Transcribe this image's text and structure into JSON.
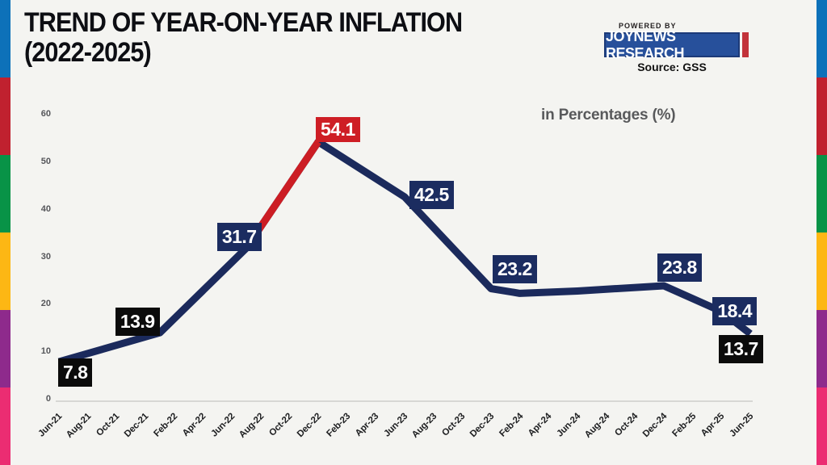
{
  "title": {
    "line1": "TREND OF YEAR-ON-YEAR INFLATION",
    "line2": "(2022-2025)"
  },
  "badge": {
    "powered_by": "POWERED BY",
    "brand": "JOYNEWS RESEARCH",
    "source": "Source: GSS",
    "brand_bg": "#27509b",
    "accent_red": "#c2333a"
  },
  "decorative_strips": {
    "colors": [
      "#0d71b9",
      "#c0212f",
      "#089347",
      "#fdb714",
      "#8e2a8c",
      "#eb2d72"
    ]
  },
  "chart_data": {
    "type": "line",
    "title": "TREND OF YEAR-ON-YEAR INFLATION (2022-2025)",
    "units_label": "in Percentages (%)",
    "ylim": [
      0,
      60
    ],
    "y_ticks": [
      0,
      10,
      20,
      30,
      40,
      50,
      60
    ],
    "grid": "off",
    "legend": "none",
    "x_months_span": 48,
    "categories": [
      "Jun-21",
      "Aug-21",
      "Oct-21",
      "Dec-21",
      "Feb-22",
      "Apr-22",
      "Jun-22",
      "Aug-22",
      "Oct-22",
      "Dec-22",
      "Feb-23",
      "Apr-23",
      "Jun-23",
      "Aug-23",
      "Oct-23",
      "Dec-23",
      "Feb-24",
      "Apr-24",
      "Jun-24",
      "Aug-24",
      "Oct-24",
      "Dec-24",
      "Feb-25",
      "Apr-25",
      "Jun-25"
    ],
    "line_colors": {
      "main": "#1b2a5c",
      "highlight": "#cc1d24"
    },
    "highlight_segment": {
      "from_idx": 13,
      "to_idx": 18
    },
    "series": [
      {
        "name": "Year-on-year inflation (%)",
        "points": [
          {
            "month": "Jun-21",
            "idx": 0,
            "value": 7.8,
            "label": {
              "text": "7.8",
              "style": "black",
              "dx": -1,
              "dy": -4
            }
          },
          {
            "month": "Jan-22",
            "idx": 7,
            "value": 13.9,
            "label": {
              "text": "13.9",
              "style": "black",
              "dx": -55,
              "dy": -31
            }
          },
          {
            "month": "Jul-22",
            "idx": 13,
            "value": 31.7,
            "label": {
              "text": "31.7",
              "style": "navy",
              "dx": -36,
              "dy": -31
            }
          },
          {
            "month": "Dec-22",
            "idx": 18,
            "value": 54.1,
            "label": {
              "text": "54.1",
              "style": "red",
              "dx": -3,
              "dy": -31
            }
          },
          {
            "month": "Jun-23",
            "idx": 24,
            "value": 42.5,
            "label": {
              "text": "42.5",
              "style": "navy",
              "dx": 6,
              "dy": -20
            }
          },
          {
            "month": "Dec-23",
            "idx": 30,
            "value": 23.2,
            "label": {
              "text": "23.2",
              "style": "navy",
              "dx": 2,
              "dy": -42
            }
          },
          {
            "month": "Feb-24",
            "idx": 32,
            "value": 22.2
          },
          {
            "month": "Jun-24",
            "idx": 36,
            "value": 22.7
          },
          {
            "month": "Dec-24",
            "idx": 42,
            "value": 23.8,
            "label": {
              "text": "23.8",
              "style": "navy",
              "dx": -8,
              "dy": -40
            }
          },
          {
            "month": "Apr-25",
            "idx": 46,
            "value": 18.4,
            "label": {
              "text": "18.4",
              "style": "navy",
              "dx": -11,
              "dy": -18
            }
          },
          {
            "month": "Jun-25",
            "idx": 48,
            "value": 13.7,
            "label": {
              "text": "13.7",
              "style": "black",
              "dx": -39,
              "dy": 2
            }
          }
        ]
      }
    ]
  }
}
